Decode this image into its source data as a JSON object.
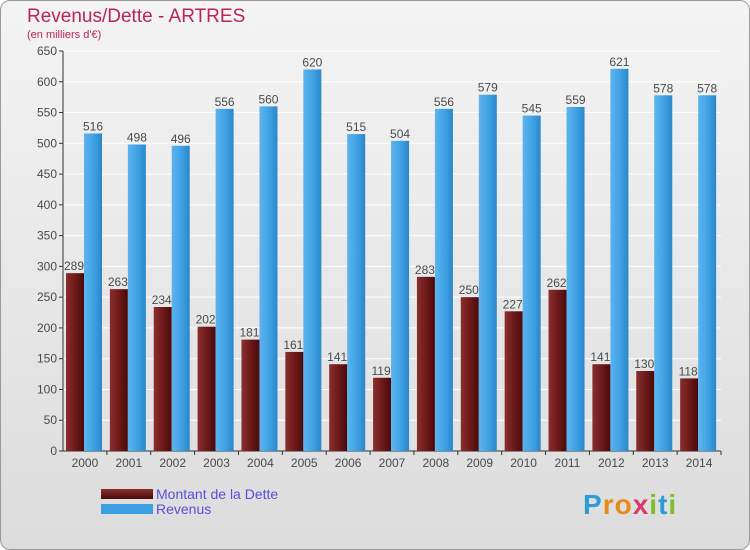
{
  "title": "Revenus/Dette - ARTRES",
  "subtitle": "(en milliers d'€)",
  "logo": {
    "letters": [
      "P",
      "r",
      "o",
      "x",
      "i",
      "t",
      "i"
    ],
    "colors": [
      "#2d9bd6",
      "#e88a1a",
      "#e88a1a",
      "#d83a6a",
      "#7bbf2a",
      "#2d9bd6",
      "#7bbf2a"
    ]
  },
  "colors": {
    "dette": "#6e1a1a",
    "revenus": "#3c9fe2",
    "axis": "#333333",
    "grid": "#ffffff",
    "label": "#4a4a4a"
  },
  "chart_data": {
    "type": "bar",
    "title": "Revenus/Dette - ARTRES",
    "ylabel": "(en milliers d'€)",
    "xlabel": "",
    "categories": [
      "2000",
      "2001",
      "2002",
      "2003",
      "2004",
      "2005",
      "2006",
      "2007",
      "2008",
      "2009",
      "2010",
      "2011",
      "2012",
      "2013",
      "2014"
    ],
    "series": [
      {
        "name": "Montant de la Dette",
        "values": [
          289,
          263,
          234,
          202,
          181,
          161,
          141,
          119,
          283,
          250,
          227,
          262,
          141,
          130,
          118
        ]
      },
      {
        "name": "Revenus",
        "values": [
          516,
          498,
          496,
          556,
          560,
          620,
          515,
          504,
          556,
          579,
          545,
          559,
          621,
          578,
          578
        ]
      }
    ],
    "ylim": [
      0,
      650
    ],
    "yticks": [
      0,
      50,
      100,
      150,
      200,
      250,
      300,
      350,
      400,
      450,
      500,
      550,
      600,
      650
    ],
    "grid": true,
    "legend": "bottom-left"
  }
}
